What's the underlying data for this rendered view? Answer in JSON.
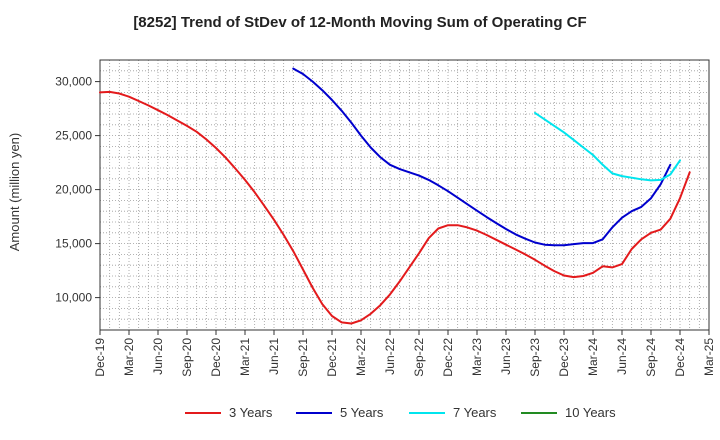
{
  "chart_data": {
    "type": "line",
    "title": "[8252]  Trend of StDev of 12-Month Moving Sum of Operating CF",
    "ylabel": "Amount (million yen)",
    "xlabel": "",
    "ylim": [
      7000,
      32000
    ],
    "yticks": [
      10000,
      15000,
      20000,
      25000,
      30000
    ],
    "ytick_labels": [
      "10,000",
      "15,000",
      "20,000",
      "25,000",
      "30,000"
    ],
    "xlim": [
      "2019-12",
      "2025-03"
    ],
    "xticks": [
      "2019-12",
      "2020-03",
      "2020-06",
      "2020-09",
      "2020-12",
      "2021-03",
      "2021-06",
      "2021-09",
      "2021-12",
      "2022-03",
      "2022-06",
      "2022-09",
      "2022-12",
      "2023-03",
      "2023-06",
      "2023-09",
      "2023-12",
      "2024-03",
      "2024-06",
      "2024-09",
      "2024-12",
      "2025-03"
    ],
    "xtick_labels": [
      "Dec-19",
      "Mar-20",
      "Jun-20",
      "Sep-20",
      "Dec-20",
      "Mar-21",
      "Jun-21",
      "Sep-21",
      "Dec-21",
      "Mar-22",
      "Jun-22",
      "Sep-22",
      "Dec-22",
      "Mar-23",
      "Jun-23",
      "Sep-23",
      "Dec-23",
      "Mar-24",
      "Jun-24",
      "Sep-24",
      "Dec-24",
      "Mar-25"
    ],
    "grid": true,
    "legend_position": "bottom",
    "series": [
      {
        "name": "3 Years",
        "color": "#e31a1c",
        "points": [
          [
            "2019-12",
            29000
          ],
          [
            "2020-01",
            29050
          ],
          [
            "2020-02",
            28900
          ],
          [
            "2020-03",
            28600
          ],
          [
            "2020-04",
            28200
          ],
          [
            "2020-05",
            27800
          ],
          [
            "2020-06",
            27350
          ],
          [
            "2020-07",
            26900
          ],
          [
            "2020-08",
            26400
          ],
          [
            "2020-09",
            25900
          ],
          [
            "2020-10",
            25350
          ],
          [
            "2020-11",
            24650
          ],
          [
            "2020-12",
            23850
          ],
          [
            "2021-01",
            22950
          ],
          [
            "2021-02",
            21950
          ],
          [
            "2021-03",
            20900
          ],
          [
            "2021-04",
            19750
          ],
          [
            "2021-05",
            18500
          ],
          [
            "2021-06",
            17200
          ],
          [
            "2021-07",
            15800
          ],
          [
            "2021-08",
            14300
          ],
          [
            "2021-09",
            12600
          ],
          [
            "2021-10",
            10900
          ],
          [
            "2021-11",
            9400
          ],
          [
            "2021-12",
            8300
          ],
          [
            "2022-01",
            7700
          ],
          [
            "2022-02",
            7600
          ],
          [
            "2022-03",
            7900
          ],
          [
            "2022-04",
            8500
          ],
          [
            "2022-05",
            9300
          ],
          [
            "2022-06",
            10300
          ],
          [
            "2022-07",
            11500
          ],
          [
            "2022-08",
            12800
          ],
          [
            "2022-09",
            14100
          ],
          [
            "2022-10",
            15500
          ],
          [
            "2022-11",
            16400
          ],
          [
            "2022-12",
            16700
          ],
          [
            "2023-01",
            16700
          ],
          [
            "2023-02",
            16500
          ],
          [
            "2023-03",
            16200
          ],
          [
            "2023-04",
            15800
          ],
          [
            "2023-05",
            15350
          ],
          [
            "2023-06",
            14900
          ],
          [
            "2023-07",
            14450
          ],
          [
            "2023-08",
            14000
          ],
          [
            "2023-09",
            13500
          ],
          [
            "2023-10",
            12950
          ],
          [
            "2023-11",
            12450
          ],
          [
            "2023-12",
            12050
          ],
          [
            "2024-01",
            11900
          ],
          [
            "2024-02",
            12000
          ],
          [
            "2024-03",
            12300
          ],
          [
            "2024-04",
            12900
          ],
          [
            "2024-05",
            12800
          ],
          [
            "2024-06",
            13100
          ],
          [
            "2024-07",
            14500
          ],
          [
            "2024-08",
            15400
          ],
          [
            "2024-09",
            16000
          ],
          [
            "2024-10",
            16300
          ],
          [
            "2024-11",
            17300
          ],
          [
            "2024-12",
            19200
          ],
          [
            "2025-01",
            21600
          ]
        ]
      },
      {
        "name": "5 Years",
        "color": "#0000cd",
        "points": [
          [
            "2021-08",
            31200
          ],
          [
            "2021-09",
            30700
          ],
          [
            "2021-10",
            30000
          ],
          [
            "2021-11",
            29200
          ],
          [
            "2021-12",
            28300
          ],
          [
            "2022-01",
            27300
          ],
          [
            "2022-02",
            26200
          ],
          [
            "2022-03",
            25000
          ],
          [
            "2022-04",
            23900
          ],
          [
            "2022-05",
            23000
          ],
          [
            "2022-06",
            22300
          ],
          [
            "2022-07",
            21900
          ],
          [
            "2022-08",
            21600
          ],
          [
            "2022-09",
            21300
          ],
          [
            "2022-10",
            20900
          ],
          [
            "2022-11",
            20400
          ],
          [
            "2022-12",
            19850
          ],
          [
            "2023-01",
            19250
          ],
          [
            "2023-02",
            18650
          ],
          [
            "2023-03",
            18050
          ],
          [
            "2023-04",
            17450
          ],
          [
            "2023-05",
            16900
          ],
          [
            "2023-06",
            16350
          ],
          [
            "2023-07",
            15850
          ],
          [
            "2023-08",
            15450
          ],
          [
            "2023-09",
            15100
          ],
          [
            "2023-10",
            14900
          ],
          [
            "2023-11",
            14850
          ],
          [
            "2023-12",
            14850
          ],
          [
            "2024-01",
            14950
          ],
          [
            "2024-02",
            15050
          ],
          [
            "2024-03",
            15050
          ],
          [
            "2024-04",
            15400
          ],
          [
            "2024-05",
            16500
          ],
          [
            "2024-06",
            17400
          ],
          [
            "2024-07",
            18000
          ],
          [
            "2024-08",
            18400
          ],
          [
            "2024-09",
            19200
          ],
          [
            "2024-10",
            20500
          ],
          [
            "2024-11",
            22300
          ]
        ]
      },
      {
        "name": "7 Years",
        "color": "#00e5ee",
        "points": [
          [
            "2023-09",
            27100
          ],
          [
            "2023-10",
            26500
          ],
          [
            "2023-11",
            25900
          ],
          [
            "2023-12",
            25300
          ],
          [
            "2024-01",
            24600
          ],
          [
            "2024-02",
            23900
          ],
          [
            "2024-03",
            23200
          ],
          [
            "2024-04",
            22300
          ],
          [
            "2024-05",
            21500
          ],
          [
            "2024-06",
            21250
          ],
          [
            "2024-07",
            21100
          ],
          [
            "2024-08",
            20950
          ],
          [
            "2024-09",
            20850
          ],
          [
            "2024-10",
            20900
          ],
          [
            "2024-11",
            21400
          ],
          [
            "2024-12",
            22700
          ]
        ]
      },
      {
        "name": "10 Years",
        "color": "#228b22",
        "points": []
      }
    ]
  }
}
